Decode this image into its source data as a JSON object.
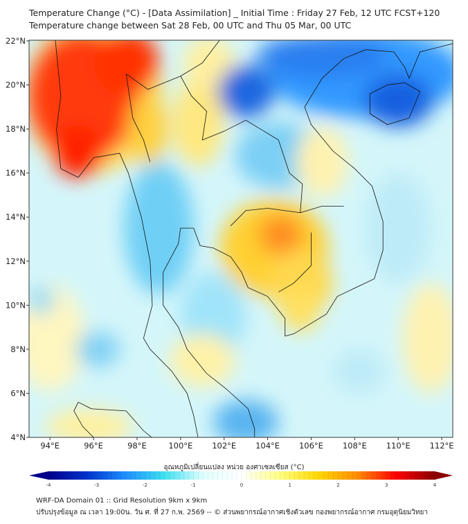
{
  "header": {
    "title": "Temperature Change (°C) - [Data Assimilation] _ Initial Time : Friday 27 Feb, 12 UTC FCST+120",
    "subtitle": "Temperature change between Sat 28 Feb, 00 UTC and Thu 05 Mar, 00 UTC"
  },
  "map": {
    "lon_range": [
      93,
      112.5
    ],
    "lat_range": [
      4,
      22
    ],
    "lon_ticks": [
      "94°E",
      "96°E",
      "98°E",
      "100°E",
      "102°E",
      "104°E",
      "106°E",
      "108°E",
      "110°E",
      "112°E"
    ],
    "lat_ticks": [
      "22°N",
      "20°N",
      "18°N",
      "16°N",
      "14°N",
      "12°N",
      "10°N",
      "8°N",
      "6°N",
      "4°N"
    ]
  },
  "colorbar": {
    "label": "อุณหภูมิเปลี่ยนแปลง หน่วย องศาเซลเซียส (°C)",
    "ticks": [
      "-4",
      "-3",
      "-2",
      "-1",
      "0",
      "1",
      "2",
      "3",
      "4"
    ],
    "range": [
      -4,
      4
    ],
    "colors": [
      "#00008b",
      "#0033cc",
      "#1e90ff",
      "#40e0f0",
      "#e0ffff",
      "#ffffff",
      "#ffff80",
      "#ffd700",
      "#ff8c00",
      "#ff0000",
      "#8b0000"
    ]
  },
  "footer": {
    "line1": "WRF-DA Domain 01 :: Grid Resolution 9km x 9km",
    "line2": "ปรับปรุงข้อมูล ณ เวลา 19:00น. วัน ศ. ที่ 27 ก.พ. 2569 -- © ส่วนพยากรณ์อากาศเชิงตัวเลข กองพยากรณ์อากาศ กรมอุตุนิยมวิทยา"
  }
}
